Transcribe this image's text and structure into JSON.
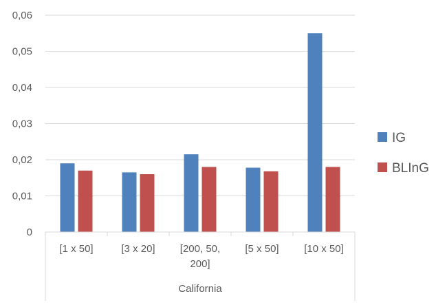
{
  "chart_data": {
    "type": "bar",
    "categories": [
      "[1 x 50]",
      "[3 x 20]",
      "[200, 50, 200]",
      "[5 x 50]",
      "[10 x 50]"
    ],
    "category_lines": [
      [
        "[1 x 50]"
      ],
      [
        "[3 x 20]"
      ],
      [
        "[200, 50,",
        "200]"
      ],
      [
        "[5 x 50]"
      ],
      [
        "[10 x 50]"
      ]
    ],
    "group_label": "California",
    "series": [
      {
        "name": "IG",
        "color": "#4F81BD",
        "values": [
          0.019,
          0.0165,
          0.0215,
          0.0178,
          0.055
        ]
      },
      {
        "name": "BLInG",
        "color": "#C0504D",
        "values": [
          0.017,
          0.016,
          0.018,
          0.0168,
          0.018
        ]
      }
    ],
    "y_ticks": [
      "0",
      "0,01",
      "0,02",
      "0,03",
      "0,04",
      "0,05",
      "0,06"
    ],
    "ylim": [
      0,
      0.06
    ],
    "grid": true,
    "legend_position": "right",
    "title": "",
    "xlabel": "",
    "ylabel": ""
  }
}
